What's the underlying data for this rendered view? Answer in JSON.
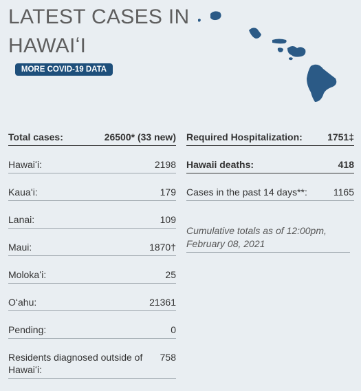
{
  "header": {
    "title": [
      "LATEST CASES IN",
      "HAWAIʻI"
    ],
    "button": "MORE COVID-19 DATA"
  },
  "left_rows": [
    {
      "label": "Total cases:",
      "value": "26500* (33 new)"
    },
    {
      "label": "Hawaiʻi:",
      "value": "2198"
    },
    {
      "label": "Kauaʻi:",
      "value": "179"
    },
    {
      "label": "Lanai:",
      "value": "109"
    },
    {
      "label": "Maui:",
      "value": "1870†"
    },
    {
      "label": "Molokaʻi:",
      "value": "25"
    },
    {
      "label": "Oʻahu:",
      "value": "21361"
    },
    {
      "label": "Pending:",
      "value": "0"
    },
    {
      "label": "Residents diagnosed outside of Hawaiʻi:",
      "value": "758"
    }
  ],
  "right_rows": [
    {
      "label": "Required Hospitalization:",
      "value": "1751‡"
    },
    {
      "label": "Hawaii deaths:",
      "value": "418"
    },
    {
      "label": "Cases in the past 14 days**:",
      "value": "1165"
    }
  ],
  "note": "Cumulative totals as of 12:00pm, February 08, 2021"
}
